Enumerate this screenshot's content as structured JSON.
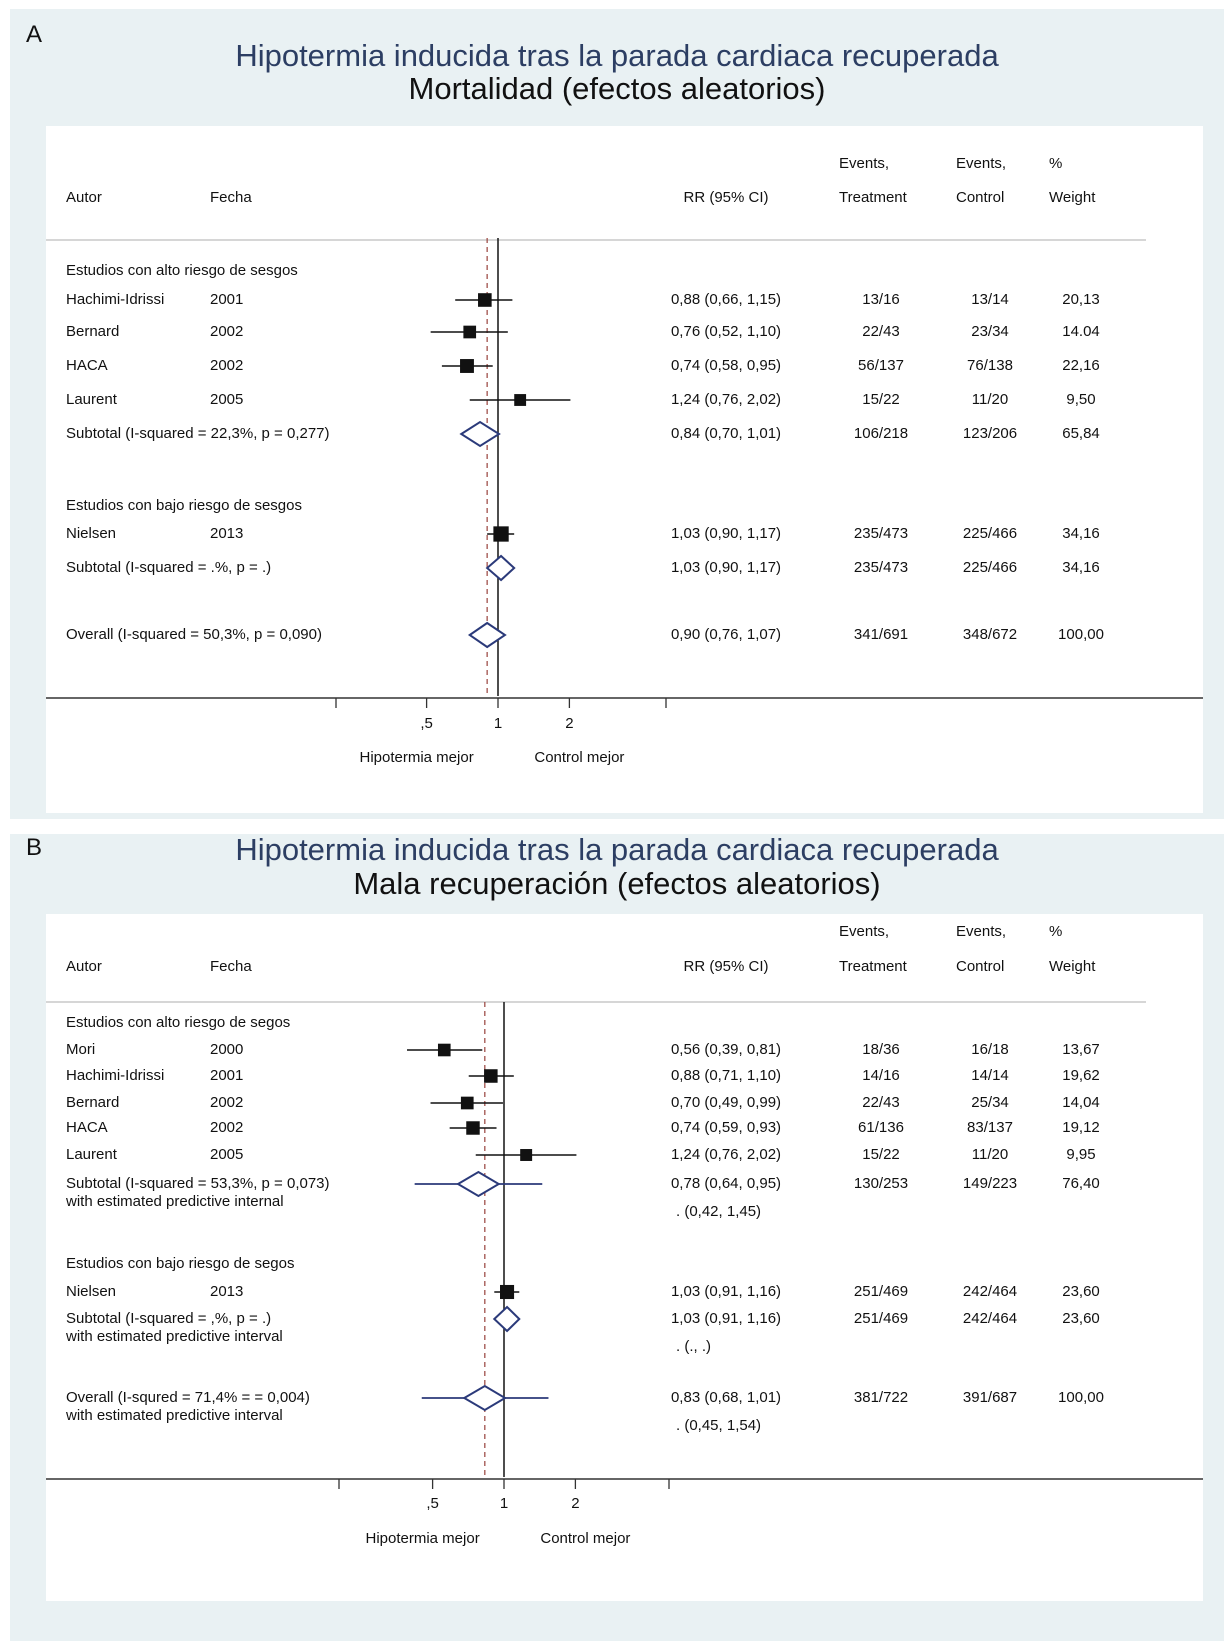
{
  "panels": [
    {
      "letter": "A",
      "title": "Hipotermia inducida tras la parada cardiaca recuperada",
      "subtitle": "Mortalidad (efectos aleatorios)",
      "headers": {
        "author": "Autor",
        "year": "Fecha",
        "rr": "RR (95% CI)",
        "events_t_1": "Events,",
        "events_t_2": "Treatment",
        "events_c_1": "Events,",
        "events_c_2": "Control",
        "weight_1": "%",
        "weight_2": "Weight"
      },
      "axis": {
        "ticks": [
          ",5",
          "1",
          "2"
        ],
        "left_label": "Hipotermia mejor",
        "right_label": "Control mejor"
      }
    },
    {
      "letter": "B",
      "title": "Hipotermia inducida tras la parada cardiaca recuperada",
      "subtitle": "Mala recuperación (efectos aleatorios)",
      "headers": {
        "author": "Autor",
        "year": "Fecha",
        "rr": "RR (95% CI)",
        "events_t_1": "Events,",
        "events_t_2": "Treatment",
        "events_c_1": "Events,",
        "events_c_2": "Control",
        "weight_1": "%",
        "weight_2": "Weight"
      },
      "axis": {
        "ticks": [
          ",5",
          "1",
          "2"
        ],
        "left_label": "Hipotermia mejor",
        "right_label": "Control mejor"
      }
    }
  ],
  "chart_data": [
    {
      "type": "forest",
      "title": "Hipotermia inducida tras la parada cardiaca recuperada",
      "subtitle": "Mortalidad (efectos aleatorios)",
      "x_scale": "log",
      "null_line": 1,
      "overall_line": 0.9,
      "rows": [
        {
          "kind": "group",
          "label": "Estudios con alto riesgo de sesgos"
        },
        {
          "kind": "study",
          "author": "Hachimi-Idrissi",
          "year": "2001",
          "rr": 0.88,
          "lo": 0.66,
          "hi": 1.15,
          "rr_text": "0,88 (0,66, 1,15)",
          "events_t": "13/16",
          "events_c": "13/14",
          "weight": "20,13",
          "weight_value": 20.13
        },
        {
          "kind": "study",
          "author": "Bernard",
          "year": "2002",
          "rr": 0.76,
          "lo": 0.52,
          "hi": 1.1,
          "rr_text": "0,76 (0,52, 1,10)",
          "events_t": "22/43",
          "events_c": "23/34",
          "weight": "14.04",
          "weight_value": 14.04
        },
        {
          "kind": "study",
          "author": "HACA",
          "year": "2002",
          "rr": 0.74,
          "lo": 0.58,
          "hi": 0.95,
          "rr_text": "0,74 (0,58, 0,95)",
          "events_t": "56/137",
          "events_c": "76/138",
          "weight": "22,16",
          "weight_value": 22.16
        },
        {
          "kind": "study",
          "author": "Laurent",
          "year": "2005",
          "rr": 1.24,
          "lo": 0.76,
          "hi": 2.02,
          "rr_text": "1,24 (0,76, 2,02)",
          "events_t": "15/22",
          "events_c": "11/20",
          "weight": "9,50",
          "weight_value": 9.5
        },
        {
          "kind": "subtotal",
          "label": "Subtotal (I-squared = 22,3%, p = 0,277)",
          "rr": 0.84,
          "lo": 0.7,
          "hi": 1.01,
          "rr_text": "0,84 (0,70, 1,01)",
          "events_t": "106/218",
          "events_c": "123/206",
          "weight": "65,84"
        },
        {
          "kind": "group",
          "label": "Estudios con bajo riesgo de sesgos"
        },
        {
          "kind": "study",
          "author": "Nielsen",
          "year": "2013",
          "rr": 1.03,
          "lo": 0.9,
          "hi": 1.17,
          "rr_text": "1,03 (0,90, 1,17)",
          "events_t": "235/473",
          "events_c": "225/466",
          "weight": "34,16",
          "weight_value": 34.16
        },
        {
          "kind": "subtotal",
          "label": "Subtotal (I-squared = .%, p = .)",
          "rr": 1.03,
          "lo": 0.9,
          "hi": 1.17,
          "rr_text": "1,03 (0,90, 1,17)",
          "events_t": "235/473",
          "events_c": "225/466",
          "weight": "34,16"
        },
        {
          "kind": "subtotal",
          "label": "Overall (I-squared = 50,3%, p = 0,090)",
          "rr": 0.9,
          "lo": 0.76,
          "hi": 1.07,
          "rr_text": "0,90 (0,76, 1,07)",
          "events_t": "341/691",
          "events_c": "348/672",
          "weight": "100,00"
        }
      ]
    },
    {
      "type": "forest",
      "title": "Hipotermia inducida tras la parada cardiaca recuperada",
      "subtitle": "Mala recuperación (efectos aleatorios)",
      "x_scale": "log",
      "null_line": 1,
      "overall_line": 0.83,
      "rows": [
        {
          "kind": "group",
          "label": "Estudios con alto riesgo de segos"
        },
        {
          "kind": "study",
          "author": "Mori",
          "year": "2000",
          "rr": 0.56,
          "lo": 0.39,
          "hi": 0.81,
          "rr_text": "0,56 (0,39, 0,81)",
          "events_t": "18/36",
          "events_c": "16/18",
          "weight": "13,67",
          "weight_value": 13.67
        },
        {
          "kind": "study",
          "author": "Hachimi-Idrissi",
          "year": "2001",
          "rr": 0.88,
          "lo": 0.71,
          "hi": 1.1,
          "rr_text": "0,88 (0,71, 1,10)",
          "events_t": "14/16",
          "events_c": "14/14",
          "weight": "19,62",
          "weight_value": 19.62
        },
        {
          "kind": "study",
          "author": "Bernard",
          "year": "2002",
          "rr": 0.7,
          "lo": 0.49,
          "hi": 0.99,
          "rr_text": "0,70 (0,49, 0,99)",
          "events_t": "22/43",
          "events_c": "25/34",
          "weight": "14,04",
          "weight_value": 14.04
        },
        {
          "kind": "study",
          "author": "HACA",
          "year": "2002",
          "rr": 0.74,
          "lo": 0.59,
          "hi": 0.93,
          "rr_text": "0,74 (0,59, 0,93)",
          "events_t": "61/136",
          "events_c": "83/137",
          "weight": "19,12",
          "weight_value": 19.12
        },
        {
          "kind": "study",
          "author": "Laurent",
          "year": "2005",
          "rr": 1.24,
          "lo": 0.76,
          "hi": 2.02,
          "rr_text": "1,24 (0,76, 2,02)",
          "events_t": "15/22",
          "events_c": "11/20",
          "weight": "9,95",
          "weight_value": 9.95
        },
        {
          "kind": "subtotal",
          "label": "Subtotal (I-squared = 53,3%, p = 0,073)",
          "label2": "with estimated predictive internal",
          "rr": 0.78,
          "lo": 0.64,
          "hi": 0.95,
          "pred_lo": 0.42,
          "pred_hi": 1.45,
          "rr_text": "0,78 (0,64, 0,95)",
          "pred_text": ".      (0,42, 1,45)",
          "events_t": "130/253",
          "events_c": "149/223",
          "weight": "76,40"
        },
        {
          "kind": "group",
          "label": "Estudios con bajo riesgo de segos"
        },
        {
          "kind": "study",
          "author": "Nielsen",
          "year": "2013",
          "rr": 1.03,
          "lo": 0.91,
          "hi": 1.16,
          "rr_text": "1,03 (0,91, 1,16)",
          "events_t": "251/469",
          "events_c": "242/464",
          "weight": "23,60",
          "weight_value": 23.6
        },
        {
          "kind": "subtotal",
          "label": "Subtotal (I-squared = ,%, p = .)",
          "label2": "with estimated predictive interval",
          "rr": 1.03,
          "lo": 0.91,
          "hi": 1.16,
          "rr_text": "1,03 (0,91, 1,16)",
          "pred_text": ".      (., .)",
          "events_t": "251/469",
          "events_c": "242/464",
          "weight": "23,60"
        },
        {
          "kind": "subtotal",
          "label": "Overall (I-squred = 71,4% = = 0,004)",
          "label2": "with estimated predictive interval",
          "rr": 0.83,
          "lo": 0.68,
          "hi": 1.01,
          "pred_lo": 0.45,
          "pred_hi": 1.54,
          "rr_text": "0,83 (0,68, 1,01)",
          "pred_text": ".      (0,45, 1,54)",
          "events_t": "381/722",
          "events_c": "391/687",
          "weight": "100,00"
        }
      ]
    }
  ]
}
